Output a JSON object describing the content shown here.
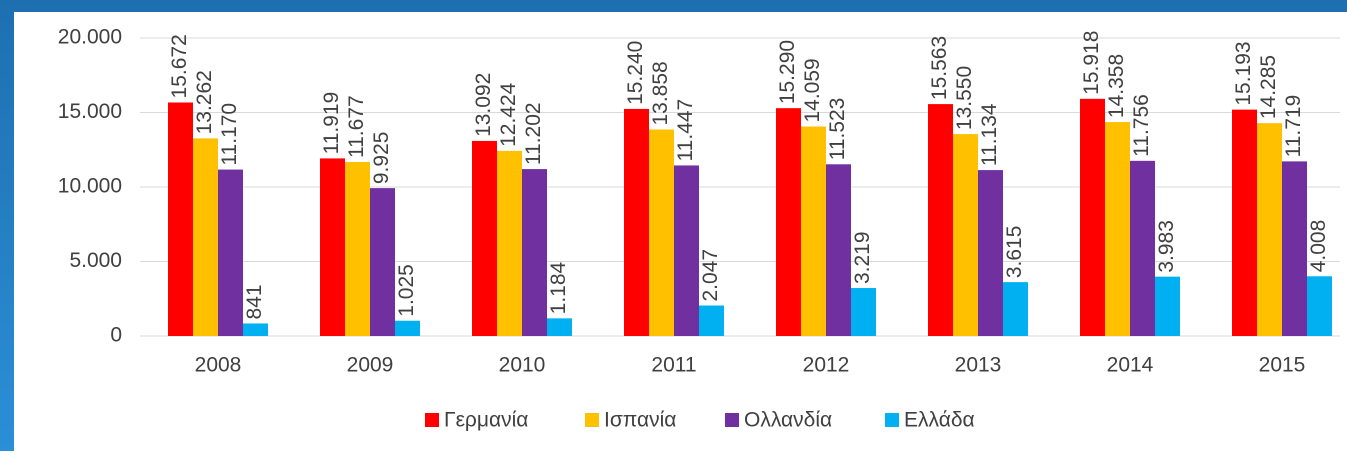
{
  "chart_data": {
    "type": "bar",
    "categories": [
      "2008",
      "2009",
      "2010",
      "2011",
      "2012",
      "2013",
      "2014",
      "2015"
    ],
    "series": [
      {
        "name": "Γερμανία",
        "color": "#ff0000",
        "values": [
          15672,
          11919,
          13092,
          15240,
          15290,
          15563,
          15918,
          15193
        ],
        "value_labels": [
          "15.672",
          "11.919",
          "13.092",
          "15.240",
          "15.290",
          "15.563",
          "15.918",
          "15.193"
        ]
      },
      {
        "name": "Ισπανία",
        "color": "#ffc000",
        "values": [
          13262,
          11677,
          12424,
          13858,
          14059,
          13550,
          14358,
          14285
        ],
        "value_labels": [
          "13.262",
          "11.677",
          "12.424",
          "13.858",
          "14.059",
          "13.550",
          "14.358",
          "14.285"
        ]
      },
      {
        "name": "Ολλανδία",
        "color": "#7030a0",
        "values": [
          11170,
          9925,
          11202,
          11447,
          11523,
          11134,
          11756,
          11719
        ],
        "value_labels": [
          "11.170",
          "9.925",
          "11.202",
          "11.447",
          "11.523",
          "11.134",
          "11.756",
          "11.719"
        ]
      },
      {
        "name": "Ελλάδα",
        "color": "#00b0f0",
        "values": [
          841,
          1025,
          1184,
          2047,
          3219,
          3615,
          3983,
          4008
        ],
        "value_labels": [
          "841",
          "1.025",
          "1.184",
          "2.047",
          "3.219",
          "3.615",
          "3.983",
          "4.008"
        ]
      }
    ],
    "ylim": [
      0,
      20000
    ],
    "yticks": [
      0,
      {
        "value": 5000,
        "label": "5.000"
      },
      {
        "value": 10000,
        "label": "10.000"
      },
      {
        "value": 15000,
        "label": "15.000"
      },
      {
        "value": 20000,
        "label": "20.000"
      }
    ],
    "grid": true,
    "legend": "bottom"
  }
}
